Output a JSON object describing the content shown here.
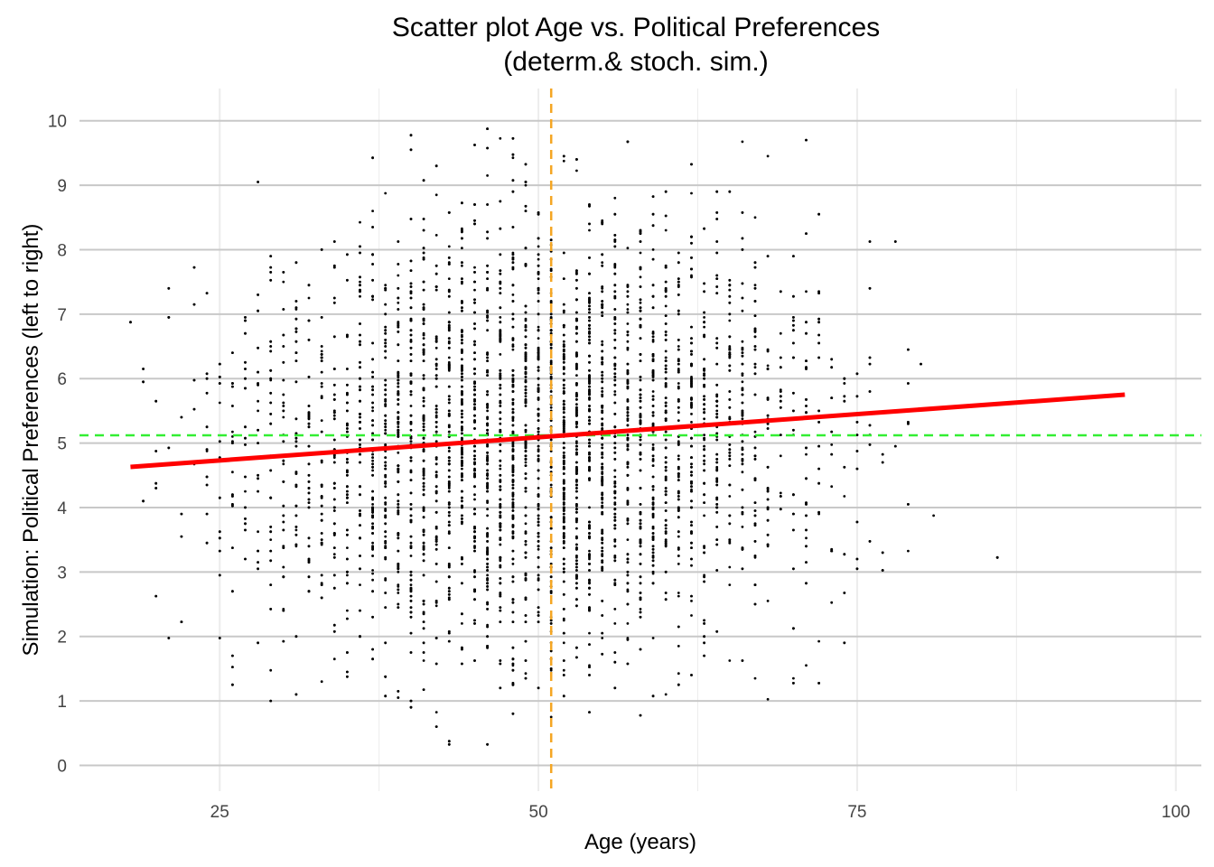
{
  "chart_data": {
    "type": "scatter",
    "title_line1": "Scatter plot Age vs. Political Preferences",
    "title_line2": "(determ.& stoch. sim.)",
    "xlabel": "Age (years)",
    "ylabel": "Simulation: Political Preferences (left to right)",
    "xlim": [
      14,
      102
    ],
    "ylim": [
      -0.4,
      10.5
    ],
    "x_ticks": [
      25,
      50,
      75,
      100
    ],
    "y_ticks": [
      0,
      1,
      2,
      3,
      4,
      5,
      6,
      7,
      8,
      9,
      10
    ],
    "x_tick_labels": [
      "25",
      "50",
      "75",
      "100"
    ],
    "y_tick_labels": [
      "0",
      "1",
      "2",
      "3",
      "4",
      "5",
      "6",
      "7",
      "8",
      "9",
      "10"
    ],
    "grid": true,
    "legend": "none",
    "points": {
      "description": "approx. 6000 simulated respondents, integer ages 18–96, preferences 0–10",
      "age_range": [
        18,
        96
      ],
      "pref_range": [
        0,
        10
      ],
      "count": 6000,
      "color": "#000000"
    },
    "regression_line": {
      "x": [
        18,
        96
      ],
      "y": [
        4.63,
        5.75
      ],
      "color": "#ff0000"
    },
    "mean_age": {
      "value": 51,
      "color": "#f5a623",
      "style": "dashed"
    },
    "mean_pref": {
      "value": 5.12,
      "color": "#33ee33",
      "style": "dashed"
    },
    "colors": {
      "grid": "#c8c8c8",
      "grid_minor": "#ececec"
    }
  }
}
